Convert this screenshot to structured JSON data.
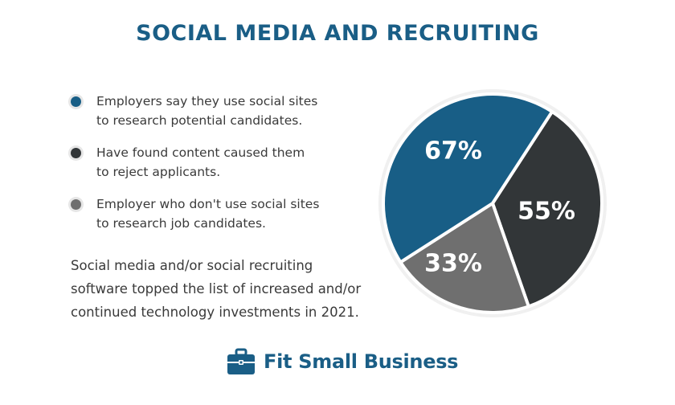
{
  "title": "SOCIAL MEDIA AND RECRUITING",
  "legend": [
    {
      "line1": "Employers say they use social sites",
      "line2": "to research potential candidates.",
      "color": "#185e86"
    },
    {
      "line1": "Have found content caused them",
      "line2": "to reject applicants.",
      "color": "#323638"
    },
    {
      "line1": "Employer who don't use social sites",
      "line2": "to research job candidates.",
      "color": "#6f6f6f"
    }
  ],
  "note": "Social media and/or social recruiting software topped the list of increased and/or continued technology investments in 2021.",
  "logo": {
    "text": "Fit Small Business",
    "icon": "briefcase-icon"
  },
  "chart_data": {
    "type": "pie",
    "title": "SOCIAL MEDIA AND RECRUITING",
    "series": [
      {
        "value": 67,
        "label": "67%",
        "color": "#185e86"
      },
      {
        "value": 55,
        "label": "55%",
        "color": "#323638"
      },
      {
        "value": 33,
        "label": "33%",
        "color": "#6f6f6f"
      }
    ]
  }
}
